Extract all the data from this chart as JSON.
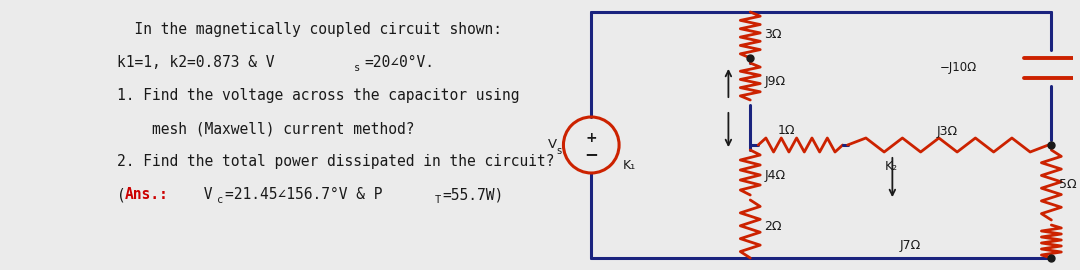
{
  "bg_color": "#ebebeb",
  "text_color": "#1a1a1a",
  "wire_color": "#1a237e",
  "comp_color": "#cc2200",
  "white": "#ffffff",
  "red": "#cc0000",
  "line1": "  In the magnetically coupled circuit shown:",
  "line2": "k1=1, k2=0.873 & V",
  "line2b": "s",
  "line2c": "=20∠0°V.",
  "line3": "1. Find the voltage across the capacitor using",
  "line4": "    mesh (Maxwell) current method?",
  "line5": "2. Find the total power dissipated in the circuit?",
  "ans_prefix": "(Ans.: ",
  "ans_vc": "V",
  "ans_vc2": "c",
  "ans_val": "=21.45∠156.7°V & P",
  "ans_pt": "T",
  "ans_end": "=55.7W)"
}
